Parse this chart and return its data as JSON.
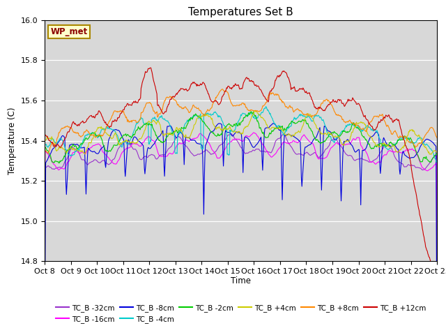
{
  "title": "Temperatures Set B",
  "xlabel": "Time",
  "ylabel": "Temperature (C)",
  "ylim": [
    14.8,
    16.0
  ],
  "xlim": [
    0,
    360
  ],
  "background_color": "#ffffff",
  "plot_bg_color": "#d8d8d8",
  "legend_label": "WP_met",
  "series": [
    {
      "label": "TC_B -32cm",
      "color": "#9933cc"
    },
    {
      "label": "TC_B -16cm",
      "color": "#ff00ff"
    },
    {
      "label": "TC_B -8cm",
      "color": "#0000dd"
    },
    {
      "label": "TC_B -4cm",
      "color": "#00cccc"
    },
    {
      "label": "TC_B -2cm",
      "color": "#00cc00"
    },
    {
      "label": "TC_B +4cm",
      "color": "#cccc00"
    },
    {
      "label": "TC_B +8cm",
      "color": "#ff8800"
    },
    {
      "label": "TC_B +12cm",
      "color": "#cc0000"
    }
  ],
  "x_tick_labels": [
    "Oct 8",
    "Oct 9",
    "Oct 10",
    "Oct 11",
    "Oct 12",
    "Oct 13",
    "Oct 14",
    "Oct 15",
    "Oct 16",
    "Oct 17",
    "Oct 18",
    "Oct 19",
    "Oct 20",
    "Oct 21",
    "Oct 22",
    "Oct 23"
  ],
  "x_tick_positions": [
    0,
    24,
    48,
    72,
    96,
    120,
    144,
    168,
    192,
    216,
    240,
    264,
    288,
    312,
    336,
    360
  ],
  "n_points": 721,
  "figsize": [
    6.4,
    4.8
  ],
  "dpi": 100
}
